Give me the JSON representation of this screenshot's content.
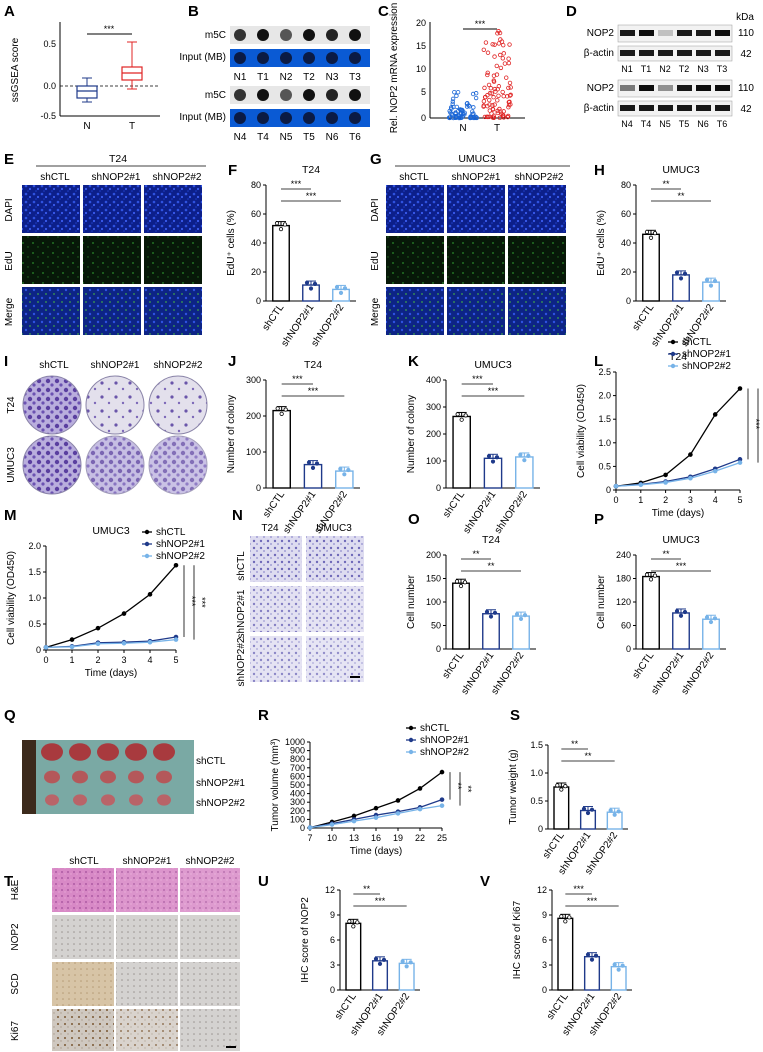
{
  "colors": {
    "black": "#000000",
    "navy": "#1f3a8a",
    "blue": "#1f6fd0",
    "lightblue": "#77b3e8",
    "red": "#e02424",
    "dotBlue": "#1a66d6",
    "micPurple": "#5a3fa0",
    "hePink": "#d889c6"
  },
  "panels": {
    "A": {
      "label": "A",
      "ylabel": "ssGSEA score",
      "sig": "***",
      "xticks": [
        "N",
        "T"
      ],
      "yticks": [
        "0.5",
        "0.0",
        "-0.5"
      ]
    },
    "B": {
      "label": "B",
      "row1_top": "m5C",
      "row1_bottom": "Input (MB)",
      "row1_lanes": [
        "N1",
        "T1",
        "N2",
        "T2",
        "N3",
        "T3"
      ],
      "row2_top": "m5C",
      "row2_bottom": "Input (MB)",
      "row2_lanes": [
        "N4",
        "T4",
        "N5",
        "T5",
        "N6",
        "T6"
      ]
    },
    "C": {
      "label": "C",
      "ylabel": "Rel. NOP2 mRNA expression",
      "sig": "***",
      "xticks": [
        "N",
        "T"
      ],
      "yticks": [
        "20",
        "15",
        "10",
        "5",
        "0"
      ]
    },
    "D": {
      "label": "D",
      "kda": "kDa",
      "nop2": "NOP2",
      "actin": "β-actin",
      "mw_top": "110",
      "mw_bottom": "42",
      "row1_lanes": [
        "N1",
        "T1",
        "N2",
        "T2",
        "N3",
        "T3"
      ],
      "row2_lanes": [
        "N4",
        "T4",
        "N5",
        "T5",
        "N6",
        "T6"
      ]
    },
    "E": {
      "label": "E",
      "cell": "T24",
      "cols": [
        "shCTL",
        "shNOP2#1",
        "shNOP2#2"
      ],
      "rows": [
        "DAPI",
        "EdU",
        "Merge"
      ]
    },
    "G": {
      "label": "G",
      "cell": "UMUC3",
      "cols": [
        "shCTL",
        "shNOP2#1",
        "shNOP2#2"
      ],
      "rows": [
        "DAPI",
        "EdU",
        "Merge"
      ]
    },
    "I": {
      "label": "I",
      "cols": [
        "shCTL",
        "shNOP2#1",
        "shNOP2#2"
      ],
      "rows": [
        "T24",
        "UMUC3"
      ]
    },
    "N": {
      "label": "N",
      "cols": [
        "T24",
        "UMUC3"
      ],
      "rows": [
        "shCTL",
        "shNOP2#1",
        "shNOP2#2"
      ]
    },
    "Q": {
      "label": "Q",
      "groups": [
        "shCTL",
        "shNOP2#1",
        "shNOP2#2"
      ]
    },
    "T": {
      "label": "T",
      "cols": [
        "shCTL",
        "shNOP2#1",
        "shNOP2#2"
      ],
      "rows": [
        "H&E",
        "NOP2",
        "SCD",
        "Ki67"
      ]
    }
  },
  "chart_data": [
    {
      "id": "F",
      "type": "bar",
      "title": "T24",
      "ylabel": "EdU⁺ cells (%)",
      "categories": [
        "shCTL",
        "shNOP2#1",
        "shNOP2#2"
      ],
      "values": [
        52,
        11,
        8
      ],
      "ylim": [
        0,
        80
      ],
      "yticks": [
        "0",
        "20",
        "40",
        "60",
        "80"
      ],
      "sig": [
        {
          "a": 0,
          "b": 1,
          "text": "***"
        },
        {
          "a": 0,
          "b": 2,
          "text": "***"
        }
      ]
    },
    {
      "id": "H",
      "type": "bar",
      "title": "UMUC3",
      "ylabel": "EdU⁺ cells (%)",
      "categories": [
        "shCTL",
        "shNOP2#1",
        "shNOP2#2"
      ],
      "values": [
        46,
        18,
        13
      ],
      "ylim": [
        0,
        80
      ],
      "yticks": [
        "0",
        "20",
        "40",
        "60",
        "80"
      ],
      "sig": [
        {
          "a": 0,
          "b": 1,
          "text": "**"
        },
        {
          "a": 0,
          "b": 2,
          "text": "**"
        }
      ]
    },
    {
      "id": "J",
      "type": "bar",
      "title": "T24",
      "ylabel": "Number of colony",
      "categories": [
        "shCTL",
        "shNOP2#1",
        "shNOP2#2"
      ],
      "values": [
        215,
        65,
        47
      ],
      "ylim": [
        0,
        300
      ],
      "yticks": [
        "0",
        "100",
        "200",
        "300"
      ],
      "sig": [
        {
          "a": 0,
          "b": 1,
          "text": "***"
        },
        {
          "a": 0,
          "b": 2,
          "text": "***"
        }
      ]
    },
    {
      "id": "K",
      "type": "bar",
      "title": "UMUC3",
      "ylabel": "Number of colony",
      "categories": [
        "shCTL",
        "shNOP2#1",
        "shNOP2#2"
      ],
      "values": [
        265,
        110,
        115
      ],
      "ylim": [
        0,
        400
      ],
      "yticks": [
        "0",
        "100",
        "200",
        "300",
        "400"
      ],
      "sig": [
        {
          "a": 0,
          "b": 1,
          "text": "***"
        },
        {
          "a": 0,
          "b": 2,
          "text": "***"
        }
      ]
    },
    {
      "id": "L",
      "type": "line",
      "title": "T24",
      "ylabel": "Cell viability (OD450)",
      "xlabel": "Time (days)",
      "x": [
        0,
        1,
        2,
        3,
        4,
        5
      ],
      "ylim": [
        0,
        2.5
      ],
      "yticks": [
        "0",
        "0.5",
        "1.0",
        "1.5",
        "2.0",
        "2.5"
      ],
      "series": [
        {
          "name": "shCTL",
          "values": [
            0.08,
            0.15,
            0.32,
            0.75,
            1.6,
            2.15
          ]
        },
        {
          "name": "shNOP2#1",
          "values": [
            0.08,
            0.12,
            0.18,
            0.28,
            0.45,
            0.65
          ]
        },
        {
          "name": "shNOP2#2",
          "values": [
            0.08,
            0.11,
            0.16,
            0.25,
            0.4,
            0.58
          ]
        }
      ],
      "sig": [
        "***",
        "***"
      ]
    },
    {
      "id": "M",
      "type": "line",
      "title": "UMUC3",
      "ylabel": "Cell viability (OD450)",
      "xlabel": "Time (days)",
      "x": [
        0,
        1,
        2,
        3,
        4,
        5
      ],
      "ylim": [
        0,
        2.0
      ],
      "yticks": [
        "0",
        "0.5",
        "1.0",
        "1.5",
        "2.0"
      ],
      "series": [
        {
          "name": "shCTL",
          "values": [
            0.05,
            0.2,
            0.42,
            0.7,
            1.07,
            1.63
          ]
        },
        {
          "name": "shNOP2#1",
          "values": [
            0.05,
            0.07,
            0.14,
            0.15,
            0.17,
            0.25
          ]
        },
        {
          "name": "shNOP2#2",
          "values": [
            0.05,
            0.06,
            0.12,
            0.13,
            0.15,
            0.2
          ]
        }
      ],
      "sig": [
        "***",
        "***"
      ]
    },
    {
      "id": "O",
      "type": "bar",
      "title": "T24",
      "ylabel": "Cell number",
      "categories": [
        "shCTL",
        "shNOP2#1",
        "shNOP2#2"
      ],
      "values": [
        140,
        75,
        70
      ],
      "ylim": [
        0,
        200
      ],
      "yticks": [
        "0",
        "50",
        "100",
        "150",
        "200"
      ],
      "sig": [
        {
          "a": 0,
          "b": 1,
          "text": "**"
        },
        {
          "a": 0,
          "b": 2,
          "text": "**"
        }
      ]
    },
    {
      "id": "P",
      "type": "bar",
      "title": "UMUC3",
      "ylabel": "Cell number",
      "categories": [
        "shCTL",
        "shNOP2#1",
        "shNOP2#2"
      ],
      "values": [
        185,
        92,
        76
      ],
      "ylim": [
        0,
        240
      ],
      "yticks": [
        "0",
        "60",
        "120",
        "180",
        "240"
      ],
      "sig": [
        {
          "a": 0,
          "b": 1,
          "text": "**"
        },
        {
          "a": 0,
          "b": 2,
          "text": "***"
        }
      ]
    },
    {
      "id": "R",
      "type": "line",
      "ylabel": "Tumor volume (mm³)",
      "xlabel": "Time (days)",
      "x": [
        7,
        10,
        13,
        16,
        19,
        22,
        25
      ],
      "ylim": [
        0,
        1000
      ],
      "yticks": [
        "0",
        "100",
        "200",
        "300",
        "400",
        "500",
        "600",
        "700",
        "800",
        "900",
        "1000"
      ],
      "series": [
        {
          "name": "shCTL",
          "values": [
            5,
            70,
            140,
            230,
            320,
            460,
            650
          ]
        },
        {
          "name": "shNOP2#1",
          "values": [
            5,
            50,
            100,
            150,
            190,
            240,
            330
          ]
        },
        {
          "name": "shNOP2#2",
          "values": [
            5,
            40,
            80,
            120,
            170,
            220,
            260
          ]
        }
      ],
      "sig": [
        "**",
        "**"
      ]
    },
    {
      "id": "S",
      "type": "bar",
      "ylabel": "Tumor weight (g)",
      "categories": [
        "shCTL",
        "shNOP2#1",
        "shNOP2#2"
      ],
      "values": [
        0.75,
        0.33,
        0.3
      ],
      "ylim": [
        0,
        1.5
      ],
      "yticks": [
        "0",
        "0.5",
        "1.0",
        "1.5"
      ],
      "sig": [
        {
          "a": 0,
          "b": 1,
          "text": "**"
        },
        {
          "a": 0,
          "b": 2,
          "text": "**"
        }
      ]
    },
    {
      "id": "U",
      "type": "bar",
      "ylabel": "IHC score of NOP2",
      "categories": [
        "shCTL",
        "shNOP2#1",
        "shNOP2#2"
      ],
      "values": [
        8,
        3.5,
        3.2
      ],
      "ylim": [
        0,
        12
      ],
      "yticks": [
        "0",
        "3",
        "6",
        "9",
        "12"
      ],
      "sig": [
        {
          "a": 0,
          "b": 1,
          "text": "**"
        },
        {
          "a": 0,
          "b": 2,
          "text": "***"
        }
      ]
    },
    {
      "id": "V",
      "type": "bar",
      "ylabel": "IHC score of Ki67",
      "categories": [
        "shCTL",
        "shNOP2#1",
        "shNOP2#2"
      ],
      "values": [
        8.6,
        4,
        2.8
      ],
      "ylim": [
        0,
        12
      ],
      "yticks": [
        "0",
        "3",
        "6",
        "9",
        "12"
      ],
      "sig": [
        {
          "a": 0,
          "b": 1,
          "text": "***"
        },
        {
          "a": 0,
          "b": 2,
          "text": "***"
        }
      ]
    }
  ]
}
